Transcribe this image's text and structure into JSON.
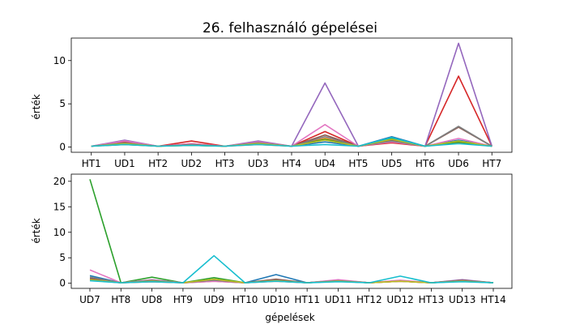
{
  "chart_data": [
    {
      "type": "line",
      "title": "26. felhasználó gépelései",
      "xlabel": "",
      "ylabel": "érték",
      "categories": [
        "HT1",
        "UD1",
        "HT2",
        "UD2",
        "HT3",
        "UD3",
        "HT4",
        "UD4",
        "HT5",
        "UD5",
        "HT6",
        "UD6",
        "HT7"
      ],
      "ylim": [
        -0.6,
        12.6
      ],
      "yticks": [
        0,
        5,
        10
      ],
      "grid": false,
      "series": [
        {
          "color": "#1f77b4",
          "values": [
            0.1,
            0.5,
            0.1,
            0.3,
            0.1,
            0.4,
            0.1,
            0.6,
            0.1,
            1.2,
            0.1,
            0.8,
            0.1
          ]
        },
        {
          "color": "#ff7f0e",
          "values": [
            0.1,
            0.4,
            0.1,
            0.4,
            0.1,
            0.3,
            0.1,
            1.0,
            0.1,
            0.6,
            0.1,
            0.5,
            0.1
          ]
        },
        {
          "color": "#2ca02c",
          "values": [
            0.1,
            0.3,
            0.1,
            0.2,
            0.1,
            0.5,
            0.1,
            0.9,
            0.1,
            1.0,
            0.1,
            0.6,
            0.1
          ]
        },
        {
          "color": "#d62728",
          "values": [
            0.1,
            0.6,
            0.1,
            0.7,
            0.1,
            0.4,
            0.1,
            1.8,
            0.1,
            0.5,
            0.1,
            8.2,
            0.1
          ]
        },
        {
          "color": "#9467bd",
          "values": [
            0.1,
            0.8,
            0.1,
            0.3,
            0.1,
            0.7,
            0.1,
            7.4,
            0.1,
            0.7,
            0.1,
            12.0,
            0.1
          ]
        },
        {
          "color": "#8c564b",
          "values": [
            0.1,
            0.4,
            0.1,
            0.3,
            0.1,
            0.5,
            0.1,
            1.4,
            0.1,
            0.8,
            0.1,
            2.3,
            0.1
          ]
        },
        {
          "color": "#e377c2",
          "values": [
            0.1,
            0.7,
            0.1,
            0.4,
            0.1,
            0.6,
            0.1,
            2.6,
            0.1,
            0.6,
            0.1,
            1.0,
            0.1
          ]
        },
        {
          "color": "#7f7f7f",
          "values": [
            0.1,
            0.5,
            0.1,
            0.3,
            0.1,
            0.5,
            0.1,
            1.2,
            0.1,
            0.7,
            0.1,
            2.4,
            0.1
          ]
        },
        {
          "color": "#bcbd22",
          "values": [
            0.1,
            0.4,
            0.1,
            0.2,
            0.1,
            0.4,
            0.1,
            0.8,
            0.1,
            0.9,
            0.1,
            0.7,
            0.1
          ]
        },
        {
          "color": "#17becf",
          "values": [
            0.1,
            0.3,
            0.1,
            0.2,
            0.1,
            0.3,
            0.1,
            0.3,
            0.1,
            1.1,
            0.1,
            0.4,
            0.1
          ]
        }
      ]
    },
    {
      "type": "line",
      "title": "",
      "xlabel": "gépelések",
      "ylabel": "érték",
      "categories": [
        "UD7",
        "HT8",
        "UD8",
        "HT9",
        "UD9",
        "HT10",
        "UD10",
        "HT11",
        "UD11",
        "HT12",
        "UD12",
        "HT13",
        "UD13",
        "HT14"
      ],
      "ylim": [
        -1.0,
        21.4
      ],
      "yticks": [
        0,
        5,
        10,
        15,
        20
      ],
      "grid": false,
      "series": [
        {
          "color": "#1f77b4",
          "values": [
            1.5,
            0.1,
            0.6,
            0.1,
            0.5,
            0.1,
            1.7,
            0.1,
            0.4,
            0.1,
            0.5,
            0.1,
            0.5,
            0.1
          ]
        },
        {
          "color": "#ff7f0e",
          "values": [
            0.8,
            0.1,
            0.4,
            0.1,
            0.5,
            0.1,
            0.6,
            0.1,
            0.6,
            0.1,
            0.4,
            0.1,
            0.6,
            0.1
          ]
        },
        {
          "color": "#2ca02c",
          "values": [
            20.4,
            0.1,
            1.2,
            0.1,
            1.1,
            0.1,
            0.6,
            0.1,
            0.4,
            0.1,
            0.5,
            0.1,
            0.4,
            0.1
          ]
        },
        {
          "color": "#d62728",
          "values": [
            0.6,
            0.1,
            0.3,
            0.1,
            0.4,
            0.1,
            0.4,
            0.1,
            0.5,
            0.1,
            0.4,
            0.1,
            0.5,
            0.1
          ]
        },
        {
          "color": "#9467bd",
          "values": [
            1.0,
            0.1,
            0.6,
            0.1,
            0.6,
            0.1,
            0.5,
            0.1,
            0.5,
            0.1,
            0.5,
            0.1,
            0.7,
            0.1
          ]
        },
        {
          "color": "#8c564b",
          "values": [
            0.9,
            0.1,
            0.5,
            0.1,
            0.7,
            0.1,
            0.8,
            0.1,
            0.6,
            0.1,
            0.5,
            0.1,
            0.6,
            0.1
          ]
        },
        {
          "color": "#e377c2",
          "values": [
            2.6,
            0.1,
            0.7,
            0.1,
            0.4,
            0.1,
            0.5,
            0.1,
            0.7,
            0.1,
            0.6,
            0.1,
            0.5,
            0.1
          ]
        },
        {
          "color": "#7f7f7f",
          "values": [
            1.2,
            0.1,
            0.6,
            0.1,
            0.6,
            0.1,
            0.6,
            0.1,
            0.5,
            0.1,
            0.4,
            0.1,
            0.5,
            0.1
          ]
        },
        {
          "color": "#bcbd22",
          "values": [
            0.7,
            0.1,
            0.4,
            0.1,
            0.8,
            0.1,
            0.5,
            0.1,
            0.4,
            0.1,
            0.4,
            0.1,
            0.4,
            0.1
          ]
        },
        {
          "color": "#17becf",
          "values": [
            0.5,
            0.1,
            0.3,
            0.1,
            5.4,
            0.1,
            0.4,
            0.1,
            0.3,
            0.1,
            1.4,
            0.1,
            0.3,
            0.1
          ]
        }
      ]
    }
  ]
}
